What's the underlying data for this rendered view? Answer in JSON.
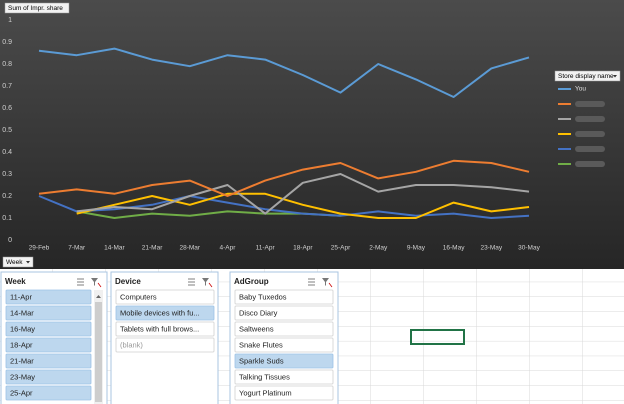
{
  "chart_data": {
    "type": "line",
    "y_field_button": "Sum of Impr. share",
    "legend_field_button": "Store display name",
    "x_field_button": "Week",
    "categories": [
      "29-Feb",
      "7-Mar",
      "14-Mar",
      "21-Mar",
      "28-Mar",
      "4-Apr",
      "11-Apr",
      "18-Apr",
      "25-Apr",
      "2-May",
      "9-May",
      "16-May",
      "23-May",
      "30-May"
    ],
    "series": [
      {
        "name": "You",
        "color": "#5b9bd5",
        "values": [
          0.86,
          0.84,
          0.87,
          0.82,
          0.79,
          0.84,
          0.82,
          0.75,
          0.67,
          0.8,
          0.73,
          0.65,
          0.78,
          0.83
        ]
      },
      {
        "color": "#ed7d31",
        "values": [
          0.21,
          0.23,
          0.21,
          0.25,
          0.27,
          0.2,
          0.27,
          0.32,
          0.35,
          0.28,
          0.31,
          0.36,
          0.35,
          0.31
        ]
      },
      {
        "color": "#a5a5a5",
        "values": [
          null,
          0.13,
          0.15,
          0.14,
          0.2,
          0.25,
          0.12,
          0.26,
          0.3,
          0.22,
          0.25,
          0.25,
          0.24,
          0.22
        ]
      },
      {
        "color": "#ffc000",
        "values": [
          null,
          0.12,
          0.16,
          0.2,
          0.16,
          0.21,
          0.21,
          0.16,
          0.12,
          0.1,
          0.1,
          0.17,
          0.13,
          0.15
        ]
      },
      {
        "color": "#4472c4",
        "values": [
          0.2,
          0.13,
          0.14,
          0.16,
          0.2,
          0.17,
          0.14,
          0.12,
          0.11,
          0.13,
          0.11,
          0.12,
          0.1,
          0.11
        ]
      },
      {
        "color": "#70ad47",
        "values": [
          null,
          0.13,
          0.1,
          0.12,
          0.11,
          0.13,
          0.12,
          0.12,
          0.11,
          null,
          null,
          null,
          null,
          null
        ]
      }
    ],
    "ylim": [
      0,
      1
    ],
    "yticks": [
      0,
      0.1,
      0.2,
      0.3,
      0.4,
      0.5,
      0.6,
      0.7,
      0.8,
      0.9,
      1
    ],
    "grid": false
  },
  "slicers": [
    {
      "title": "Week",
      "items": [
        {
          "label": "11-Apr",
          "selected": true
        },
        {
          "label": "14-Mar",
          "selected": true
        },
        {
          "label": "16-May",
          "selected": true
        },
        {
          "label": "18-Apr",
          "selected": true
        },
        {
          "label": "21-Mar",
          "selected": true
        },
        {
          "label": "23-May",
          "selected": true
        },
        {
          "label": "25-Apr",
          "selected": true
        }
      ]
    },
    {
      "title": "Device",
      "items": [
        {
          "label": "Computers",
          "selected": false
        },
        {
          "label": "Mobile devices with fu...",
          "selected": true
        },
        {
          "label": "Tablets with full brows...",
          "selected": false
        },
        {
          "label": "(blank)",
          "selected": false
        }
      ]
    },
    {
      "title": "AdGroup",
      "items": [
        {
          "label": "Baby Tuxedos",
          "selected": false
        },
        {
          "label": "Disco Diary",
          "selected": false
        },
        {
          "label": "Saltweens",
          "selected": false
        },
        {
          "label": "Snake Flutes",
          "selected": false
        },
        {
          "label": "Sparkle Suds",
          "selected": true
        },
        {
          "label": "Talking Tissues",
          "selected": false
        },
        {
          "label": "Yogurt Platinum",
          "selected": false
        }
      ]
    }
  ]
}
